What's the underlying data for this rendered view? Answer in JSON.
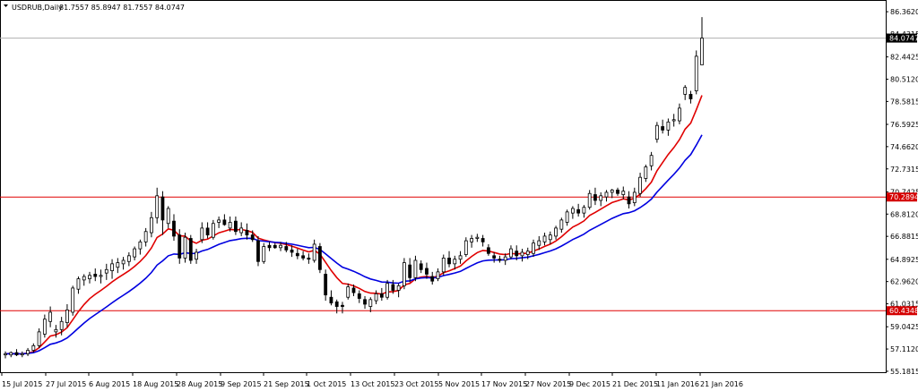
{
  "window": {
    "title": "USDRUB,Daily",
    "ohlc": "81.7557 85.8947 81.7557 84.0747"
  },
  "colors": {
    "background": "#ffffff",
    "frame": "#000000",
    "bull_candle": "#ffffff",
    "bear_candle": "#000000",
    "ma_fast": "#e00000",
    "ma_slow": "#0000e0",
    "level_line": "#e00000",
    "price_line": "#b0b0b0",
    "current_label_bg": "#000000",
    "current_label_fg": "#ffffff",
    "level_label_bg": "#d40000",
    "level_label_fg": "#ffffff"
  },
  "chart_data": {
    "type": "candlestick",
    "title": "USDRUB,Daily",
    "ylim": [
      55.1,
      87.3
    ],
    "y_ticks": [
      "86.3620",
      "84.4315",
      "82.4425",
      "80.5120",
      "78.5815",
      "76.5925",
      "74.6620",
      "72.7315",
      "70.7425",
      "68.8120",
      "66.8815",
      "64.8925",
      "62.9620",
      "61.0315",
      "59.0425",
      "57.1120",
      "55.1815"
    ],
    "x_ticks": [
      "15 Jul 2015",
      "27 Jul 2015",
      "6 Aug 2015",
      "18 Aug 2015",
      "28 Aug 2015",
      "9 Sep 2015",
      "21 Sep 2015",
      "1 Oct 2015",
      "13 Oct 2015",
      "23 Oct 2015",
      "5 Nov 2015",
      "17 Nov 2015",
      "27 Nov 2015",
      "9 Dec 2015",
      "21 Dec 2015",
      "11 Jan 2016",
      "21 Jan 2016"
    ],
    "current_price": "84.0747",
    "levels": [
      {
        "value": 70.2894,
        "label": "70.2894"
      },
      {
        "value": 60.4348,
        "label": "60.4348"
      }
    ],
    "candles": [
      {
        "o": 56.6,
        "h": 56.9,
        "l": 56.3,
        "c": 56.7
      },
      {
        "o": 56.6,
        "h": 56.9,
        "l": 56.4,
        "c": 56.8
      },
      {
        "o": 56.8,
        "h": 57.1,
        "l": 56.5,
        "c": 56.6
      },
      {
        "o": 56.6,
        "h": 56.9,
        "l": 56.4,
        "c": 56.7
      },
      {
        "o": 56.7,
        "h": 57.2,
        "l": 56.5,
        "c": 57.0
      },
      {
        "o": 57.0,
        "h": 57.6,
        "l": 56.8,
        "c": 57.4
      },
      {
        "o": 57.4,
        "h": 58.9,
        "l": 57.2,
        "c": 58.6
      },
      {
        "o": 58.4,
        "h": 60.1,
        "l": 58.1,
        "c": 59.7
      },
      {
        "o": 59.5,
        "h": 60.8,
        "l": 59.0,
        "c": 60.3
      },
      {
        "o": 58.6,
        "h": 59.2,
        "l": 58.1,
        "c": 58.8
      },
      {
        "o": 58.8,
        "h": 59.9,
        "l": 58.3,
        "c": 59.5
      },
      {
        "o": 59.4,
        "h": 61.0,
        "l": 59.0,
        "c": 60.5
      },
      {
        "o": 60.3,
        "h": 62.6,
        "l": 60.0,
        "c": 62.4
      },
      {
        "o": 62.3,
        "h": 63.4,
        "l": 61.9,
        "c": 63.2
      },
      {
        "o": 63.1,
        "h": 63.6,
        "l": 62.6,
        "c": 63.4
      },
      {
        "o": 63.2,
        "h": 63.8,
        "l": 62.8,
        "c": 63.5
      },
      {
        "o": 63.6,
        "h": 64.1,
        "l": 63.0,
        "c": 63.4
      },
      {
        "o": 63.4,
        "h": 64.0,
        "l": 62.8,
        "c": 63.5
      },
      {
        "o": 63.7,
        "h": 64.5,
        "l": 63.1,
        "c": 64.0
      },
      {
        "o": 63.9,
        "h": 64.9,
        "l": 63.2,
        "c": 64.5
      },
      {
        "o": 64.2,
        "h": 65.0,
        "l": 63.7,
        "c": 64.6
      },
      {
        "o": 64.5,
        "h": 65.1,
        "l": 64.0,
        "c": 64.8
      },
      {
        "o": 64.7,
        "h": 65.5,
        "l": 64.3,
        "c": 65.2
      },
      {
        "o": 65.1,
        "h": 66.0,
        "l": 64.8,
        "c": 65.8
      },
      {
        "o": 65.8,
        "h": 66.6,
        "l": 65.3,
        "c": 66.4
      },
      {
        "o": 66.4,
        "h": 67.6,
        "l": 66.0,
        "c": 67.3
      },
      {
        "o": 67.2,
        "h": 69.0,
        "l": 66.8,
        "c": 68.5
      },
      {
        "o": 68.5,
        "h": 71.1,
        "l": 68.0,
        "c": 70.4
      },
      {
        "o": 70.3,
        "h": 70.8,
        "l": 67.0,
        "c": 68.3
      },
      {
        "o": 68.0,
        "h": 69.5,
        "l": 67.6,
        "c": 69.3
      },
      {
        "o": 68.2,
        "h": 68.8,
        "l": 66.5,
        "c": 66.9
      },
      {
        "o": 67.0,
        "h": 67.5,
        "l": 64.5,
        "c": 65.0
      },
      {
        "o": 65.0,
        "h": 67.2,
        "l": 64.6,
        "c": 66.8
      },
      {
        "o": 66.7,
        "h": 67.0,
        "l": 64.5,
        "c": 64.8
      },
      {
        "o": 64.9,
        "h": 65.8,
        "l": 64.5,
        "c": 65.5
      },
      {
        "o": 66.6,
        "h": 68.1,
        "l": 66.3,
        "c": 67.6
      },
      {
        "o": 67.6,
        "h": 68.1,
        "l": 66.7,
        "c": 67.0
      },
      {
        "o": 66.8,
        "h": 68.3,
        "l": 66.6,
        "c": 68.0
      },
      {
        "o": 68.1,
        "h": 68.6,
        "l": 67.6,
        "c": 68.3
      },
      {
        "o": 68.3,
        "h": 68.8,
        "l": 67.8,
        "c": 67.9
      },
      {
        "o": 67.6,
        "h": 68.6,
        "l": 67.3,
        "c": 68.1
      },
      {
        "o": 68.2,
        "h": 68.6,
        "l": 67.0,
        "c": 67.3
      },
      {
        "o": 67.2,
        "h": 68.1,
        "l": 66.9,
        "c": 67.6
      },
      {
        "o": 67.4,
        "h": 68.0,
        "l": 66.6,
        "c": 67.0
      },
      {
        "o": 67.0,
        "h": 67.4,
        "l": 66.4,
        "c": 66.6
      },
      {
        "o": 66.5,
        "h": 66.9,
        "l": 64.3,
        "c": 64.7
      },
      {
        "o": 64.7,
        "h": 66.3,
        "l": 64.5,
        "c": 66.0
      },
      {
        "o": 66.1,
        "h": 66.4,
        "l": 65.6,
        "c": 65.9
      },
      {
        "o": 66.1,
        "h": 66.3,
        "l": 65.8,
        "c": 65.9
      },
      {
        "o": 65.9,
        "h": 66.4,
        "l": 65.6,
        "c": 66.1
      },
      {
        "o": 66.0,
        "h": 66.4,
        "l": 65.5,
        "c": 65.7
      },
      {
        "o": 65.7,
        "h": 66.1,
        "l": 65.1,
        "c": 65.5
      },
      {
        "o": 65.4,
        "h": 65.8,
        "l": 64.9,
        "c": 65.2
      },
      {
        "o": 65.2,
        "h": 65.6,
        "l": 64.8,
        "c": 65.0
      },
      {
        "o": 65.0,
        "h": 65.4,
        "l": 64.5,
        "c": 64.9
      },
      {
        "o": 64.8,
        "h": 66.6,
        "l": 64.6,
        "c": 66.2
      },
      {
        "o": 66.0,
        "h": 66.3,
        "l": 63.7,
        "c": 64.0
      },
      {
        "o": 63.6,
        "h": 64.0,
        "l": 61.3,
        "c": 61.8
      },
      {
        "o": 61.6,
        "h": 62.2,
        "l": 60.9,
        "c": 61.1
      },
      {
        "o": 61.2,
        "h": 61.4,
        "l": 60.2,
        "c": 60.8
      },
      {
        "o": 60.9,
        "h": 61.2,
        "l": 60.2,
        "c": 60.8
      },
      {
        "o": 61.6,
        "h": 62.8,
        "l": 61.4,
        "c": 62.5
      },
      {
        "o": 62.4,
        "h": 62.7,
        "l": 61.7,
        "c": 62.0
      },
      {
        "o": 61.9,
        "h": 62.2,
        "l": 61.1,
        "c": 61.5
      },
      {
        "o": 61.4,
        "h": 61.7,
        "l": 60.6,
        "c": 61.0
      },
      {
        "o": 60.8,
        "h": 61.6,
        "l": 60.3,
        "c": 61.4
      },
      {
        "o": 61.3,
        "h": 62.2,
        "l": 61.0,
        "c": 61.9
      },
      {
        "o": 61.9,
        "h": 62.4,
        "l": 61.3,
        "c": 61.6
      },
      {
        "o": 61.6,
        "h": 63.1,
        "l": 61.4,
        "c": 62.8
      },
      {
        "o": 62.7,
        "h": 63.1,
        "l": 61.9,
        "c": 62.2
      },
      {
        "o": 62.2,
        "h": 62.8,
        "l": 61.6,
        "c": 62.6
      },
      {
        "o": 62.6,
        "h": 65.0,
        "l": 62.3,
        "c": 64.6
      },
      {
        "o": 64.4,
        "h": 65.0,
        "l": 62.9,
        "c": 63.3
      },
      {
        "o": 63.3,
        "h": 65.2,
        "l": 63.0,
        "c": 64.8
      },
      {
        "o": 64.5,
        "h": 64.8,
        "l": 63.7,
        "c": 64.0
      },
      {
        "o": 64.1,
        "h": 64.6,
        "l": 63.2,
        "c": 63.6
      },
      {
        "o": 63.4,
        "h": 63.8,
        "l": 62.7,
        "c": 63.0
      },
      {
        "o": 63.2,
        "h": 64.1,
        "l": 63.0,
        "c": 63.8
      },
      {
        "o": 63.8,
        "h": 65.3,
        "l": 63.5,
        "c": 65.0
      },
      {
        "o": 65.0,
        "h": 65.6,
        "l": 64.2,
        "c": 64.5
      },
      {
        "o": 64.5,
        "h": 65.2,
        "l": 64.0,
        "c": 64.9
      },
      {
        "o": 64.9,
        "h": 65.6,
        "l": 64.5,
        "c": 65.2
      },
      {
        "o": 65.3,
        "h": 66.8,
        "l": 65.1,
        "c": 66.5
      },
      {
        "o": 66.4,
        "h": 67.0,
        "l": 65.9,
        "c": 66.7
      },
      {
        "o": 66.7,
        "h": 67.1,
        "l": 66.4,
        "c": 66.8
      },
      {
        "o": 66.7,
        "h": 67.0,
        "l": 66.0,
        "c": 66.4
      },
      {
        "o": 65.9,
        "h": 66.2,
        "l": 65.2,
        "c": 65.4
      },
      {
        "o": 65.2,
        "h": 65.5,
        "l": 64.6,
        "c": 65.0
      },
      {
        "o": 64.9,
        "h": 65.2,
        "l": 64.6,
        "c": 64.8
      },
      {
        "o": 64.8,
        "h": 65.4,
        "l": 64.4,
        "c": 65.1
      },
      {
        "o": 65.1,
        "h": 66.1,
        "l": 64.9,
        "c": 65.8
      },
      {
        "o": 65.6,
        "h": 66.1,
        "l": 64.8,
        "c": 65.2
      },
      {
        "o": 65.2,
        "h": 65.8,
        "l": 64.7,
        "c": 65.5
      },
      {
        "o": 65.3,
        "h": 65.9,
        "l": 64.9,
        "c": 65.6
      },
      {
        "o": 65.4,
        "h": 66.6,
        "l": 65.1,
        "c": 66.3
      },
      {
        "o": 66.1,
        "h": 66.9,
        "l": 65.7,
        "c": 66.5
      },
      {
        "o": 66.4,
        "h": 67.2,
        "l": 66.1,
        "c": 66.9
      },
      {
        "o": 66.6,
        "h": 67.3,
        "l": 66.2,
        "c": 67.0
      },
      {
        "o": 66.9,
        "h": 67.8,
        "l": 66.6,
        "c": 67.6
      },
      {
        "o": 67.5,
        "h": 68.5,
        "l": 67.2,
        "c": 68.3
      },
      {
        "o": 68.1,
        "h": 69.2,
        "l": 67.8,
        "c": 69.0
      },
      {
        "o": 68.9,
        "h": 69.5,
        "l": 68.4,
        "c": 69.3
      },
      {
        "o": 69.2,
        "h": 69.7,
        "l": 68.6,
        "c": 68.9
      },
      {
        "o": 68.9,
        "h": 69.6,
        "l": 68.5,
        "c": 69.4
      },
      {
        "o": 69.4,
        "h": 70.9,
        "l": 69.2,
        "c": 70.6
      },
      {
        "o": 70.5,
        "h": 71.1,
        "l": 69.6,
        "c": 70.0
      },
      {
        "o": 70.0,
        "h": 70.7,
        "l": 69.5,
        "c": 70.4
      },
      {
        "o": 70.3,
        "h": 70.9,
        "l": 69.9,
        "c": 70.7
      },
      {
        "o": 70.7,
        "h": 71.0,
        "l": 70.2,
        "c": 70.9
      },
      {
        "o": 70.9,
        "h": 71.1,
        "l": 70.4,
        "c": 70.6
      },
      {
        "o": 70.5,
        "h": 71.2,
        "l": 70.1,
        "c": 70.8
      },
      {
        "o": 70.3,
        "h": 70.8,
        "l": 69.3,
        "c": 69.7
      },
      {
        "o": 69.8,
        "h": 71.1,
        "l": 69.5,
        "c": 70.7
      },
      {
        "o": 70.6,
        "h": 72.4,
        "l": 70.3,
        "c": 72.0
      },
      {
        "o": 71.9,
        "h": 73.1,
        "l": 71.6,
        "c": 72.9
      },
      {
        "o": 73.0,
        "h": 74.2,
        "l": 72.6,
        "c": 73.9
      },
      {
        "o": 75.3,
        "h": 76.8,
        "l": 75.0,
        "c": 76.5
      },
      {
        "o": 76.4,
        "h": 77.0,
        "l": 75.8,
        "c": 76.1
      },
      {
        "o": 76.1,
        "h": 77.1,
        "l": 75.6,
        "c": 76.8
      },
      {
        "o": 76.9,
        "h": 77.5,
        "l": 76.4,
        "c": 77.0
      },
      {
        "o": 76.9,
        "h": 78.4,
        "l": 76.6,
        "c": 78.0
      },
      {
        "o": 79.2,
        "h": 80.0,
        "l": 78.7,
        "c": 79.8
      },
      {
        "o": 79.2,
        "h": 79.5,
        "l": 78.4,
        "c": 78.8
      },
      {
        "o": 79.5,
        "h": 83.0,
        "l": 79.2,
        "c": 82.5
      },
      {
        "o": 81.7557,
        "h": 85.8947,
        "l": 81.7557,
        "c": 84.0747
      }
    ]
  }
}
